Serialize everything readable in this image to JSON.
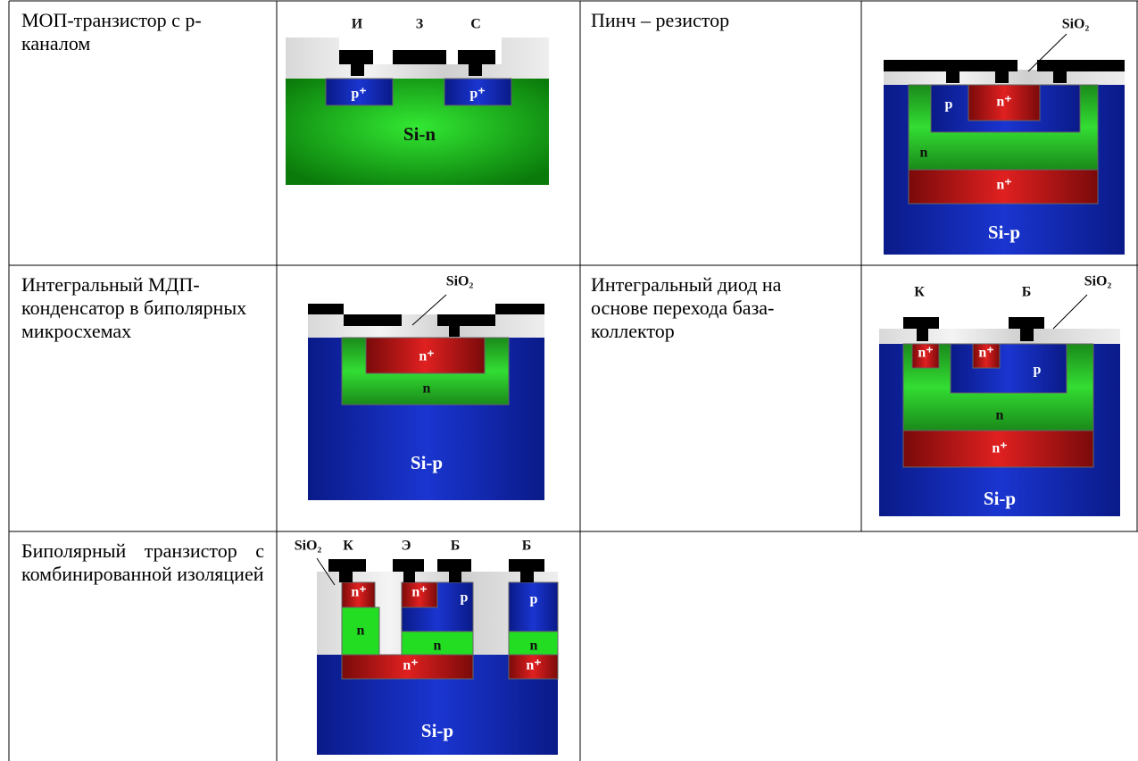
{
  "cells": [
    {
      "caption": "МОП-транзистор с р-каналом",
      "labels": [
        "И",
        "З",
        "С",
        "p⁺",
        "p⁺",
        "Si-n"
      ]
    },
    {
      "caption": "Пинч – резистор",
      "labels": [
        "SiO₂",
        "p",
        "n⁺",
        "n",
        "n⁺",
        "Si-p"
      ]
    },
    {
      "caption": "Интегральный МДП-конденсатор в биполярных микросхемах",
      "labels": [
        "SiO₂",
        "n⁺",
        "n",
        "Si-p"
      ]
    },
    {
      "caption": "Интегральный диод на основе перехода база-коллектор",
      "labels": [
        "К",
        "Б",
        "SiO₂",
        "n⁺",
        "n⁺",
        "p",
        "n",
        "n⁺",
        "Si-p"
      ]
    },
    {
      "caption": "Биполярный транзистор с комбинированной изоляцией",
      "labels": [
        "SiO₂",
        "К",
        "Э",
        "Б",
        "Б",
        "n⁺",
        "n⁺",
        "p",
        "p",
        "n",
        "n",
        "n",
        "n⁺",
        "n⁺",
        "Si-p"
      ]
    }
  ]
}
